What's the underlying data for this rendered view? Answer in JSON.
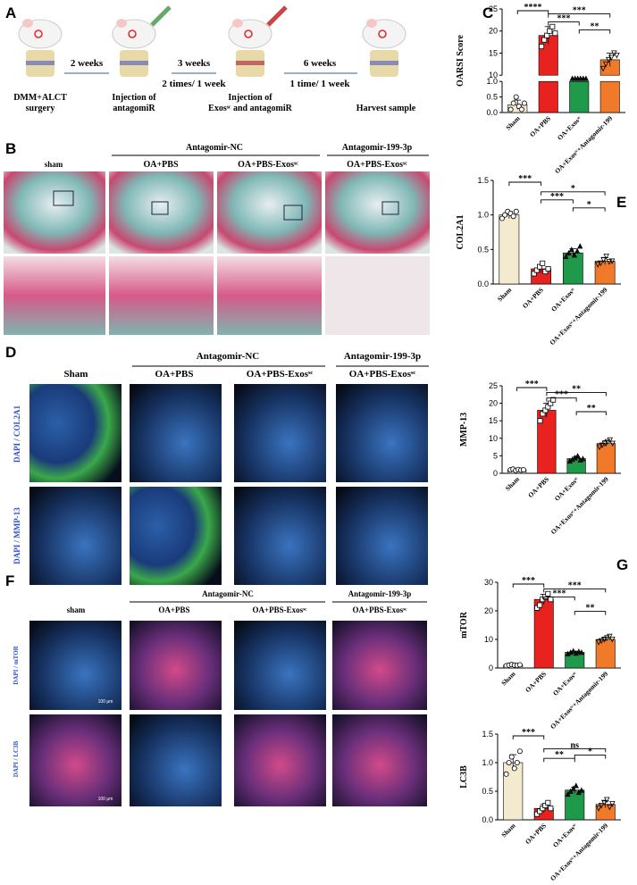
{
  "panel_labels": {
    "a": "A",
    "b": "B",
    "c": "C",
    "d": "D",
    "e": "E",
    "f": "F",
    "g": "G"
  },
  "scheme": {
    "steps": [
      [
        "DMM+ALCT",
        "surgery"
      ],
      [
        "Injection of",
        "antagomiR"
      ],
      [
        "Injection  of",
        "Exosˢᶜ and antagomiR"
      ],
      [
        "Harvest sample"
      ]
    ],
    "intervals": [
      {
        "duration": "2 weeks"
      },
      {
        "duration": "3 weeks",
        "frequency": "2 times/ 1 week"
      },
      {
        "duration": "6 weeks",
        "frequency": "1 time/ 1 week"
      }
    ]
  },
  "histology": {
    "group_headers": [
      "Antagomir-NC",
      "Antagomir-199-3p"
    ],
    "columns": [
      "sham",
      "OA+PBS",
      "OA+PBS-Exosˢᶜ",
      "OA+PBS-Exosˢᶜ"
    ]
  },
  "fluorescence_d": {
    "group_headers": [
      "Antagomir-NC",
      "Antagomir-199-3p"
    ],
    "columns": [
      "Sham",
      "OA+PBS",
      "OA+PBS-Exosˢᶜ",
      "OA+PBS-Exosˢᶜ"
    ],
    "rows": [
      "DAPI / COL2A1",
      "DAPI / MMP-13"
    ]
  },
  "fluorescence_f": {
    "group_headers": [
      "Antagomir-NC",
      "Antagomir-199-3p"
    ],
    "columns": [
      "sham",
      "OA+PBS",
      "OA+PBS-Exosˢᶜ",
      "OA+PBS-Exosˢᶜ"
    ],
    "rows": [
      "DAPI / mTOR",
      "DAPI / LC3B"
    ],
    "scale_bar": "100 μm"
  },
  "chart_data": [
    {
      "type": "bar",
      "ylabel": "OARSI Score",
      "categories": [
        "Sham",
        "OA+PBS",
        "OA+Exosˢᶜ",
        "OA+Exosˢᶜ+Antagomir-199"
      ],
      "colors": [
        "#f3ead0",
        "#e8231f",
        "#1e9a4a",
        "#f07a2a"
      ],
      "values": [
        0.25,
        19,
        8.8,
        13.5
      ],
      "errors": [
        0.15,
        2,
        0.8,
        1.5
      ],
      "points": [
        [
          0.1,
          0.3,
          0.5,
          0.2,
          0.1,
          0.3
        ],
        [
          16.5,
          18,
          19,
          20,
          21,
          19.5
        ],
        [
          8,
          8.5,
          9,
          9.5,
          8.5,
          9.5
        ],
        [
          11.5,
          12.5,
          13.5,
          14,
          15,
          14.5
        ]
      ],
      "ylim": [
        0,
        25
      ],
      "axis_break": [
        1,
        10
      ],
      "yticks": [
        {
          "value": 0,
          "label": "0.0"
        },
        0.5,
        {
          "value": 1,
          "label": "1.0"
        },
        10,
        15,
        20,
        25
      ],
      "significance": [
        "****",
        "***",
        "***",
        "**"
      ]
    },
    {
      "type": "bar",
      "ylabel": "COL2A1",
      "categories": [
        "Sham",
        "OA+PBS",
        "OA+Exosˢᶜ",
        "OA+Exosˢᶜ+Antagomir-199"
      ],
      "colors": [
        "#f3ead0",
        "#e8231f",
        "#1e9a4a",
        "#f07a2a"
      ],
      "values": [
        1.0,
        0.22,
        0.45,
        0.33
      ],
      "errors": [
        0.05,
        0.06,
        0.06,
        0.05
      ],
      "points": [
        [
          0.95,
          1.0,
          1.05,
          1.02,
          0.98,
          1.05
        ],
        [
          0.15,
          0.2,
          0.25,
          0.3,
          0.18,
          0.22
        ],
        [
          0.4,
          0.45,
          0.5,
          0.42,
          0.48,
          0.55
        ],
        [
          0.28,
          0.3,
          0.35,
          0.4,
          0.32,
          0.33
        ]
      ],
      "ylim": [
        0,
        1.5
      ],
      "yticks": [
        {
          "value": 0,
          "label": "0.0"
        },
        0.5,
        {
          "value": 1,
          "label": "1.0"
        },
        1.5
      ],
      "significance": [
        "***",
        "*",
        "***",
        "*"
      ]
    },
    {
      "type": "bar",
      "ylabel": "MMP-13",
      "categories": [
        "Sham",
        "OA+PBS",
        "OA+Exosˢᶜ",
        "OA+Exosˢᶜ+Antagomir-199"
      ],
      "colors": [
        "#f3ead0",
        "#e8231f",
        "#1e9a4a",
        "#f07a2a"
      ],
      "values": [
        1,
        18,
        4.2,
        8.5
      ],
      "errors": [
        0.2,
        2,
        0.6,
        0.8
      ],
      "points": [
        [
          1,
          1.2,
          0.8,
          1.1,
          0.9,
          1
        ],
        [
          15,
          17,
          18,
          19,
          20,
          21
        ],
        [
          3.5,
          4,
          4.5,
          5,
          3.8,
          4.2
        ],
        [
          7.5,
          8,
          8.5,
          9,
          9.5,
          8.5
        ]
      ],
      "ylim": [
        0,
        25
      ],
      "yticks": [
        0,
        5,
        10,
        15,
        20,
        25
      ],
      "significance": [
        "***",
        "**",
        "***",
        "**"
      ]
    },
    {
      "type": "bar",
      "ylabel": "mTOR",
      "categories": [
        "Sham",
        "OA+PBS",
        "OA+Exosˢᶜ",
        "OA+Exosˢᶜ+Antagomir-199"
      ],
      "colors": [
        "#f3ead0",
        "#e8231f",
        "#1e9a4a",
        "#f07a2a"
      ],
      "values": [
        1,
        24,
        5.5,
        10
      ],
      "errors": [
        0.2,
        1.8,
        0.4,
        0.7
      ],
      "points": [
        [
          0.8,
          1,
          1.2,
          1,
          0.9,
          1.1
        ],
        [
          21,
          22,
          24,
          25,
          26,
          24
        ],
        [
          5,
          5.5,
          6,
          5.2,
          5.8,
          5.5
        ],
        [
          9,
          9.5,
          10,
          10.5,
          11,
          10
        ]
      ],
      "ylim": [
        0,
        30
      ],
      "yticks": [
        0,
        10,
        20,
        30
      ],
      "significance": [
        "***",
        "***",
        "***",
        "**"
      ]
    },
    {
      "type": "bar",
      "ylabel": "LC3B",
      "categories": [
        "Sham",
        "OA+PBS",
        "OA+Exosˢᶜ",
        "OA+Exosˢᶜ+Antagomir-199"
      ],
      "colors": [
        "#f3ead0",
        "#e8231f",
        "#1e9a4a",
        "#f07a2a"
      ],
      "values": [
        1.0,
        0.2,
        0.52,
        0.27
      ],
      "errors": [
        0.14,
        0.07,
        0.05,
        0.06
      ],
      "points": [
        [
          0.8,
          1.0,
          1.1,
          0.9,
          1.0,
          1.2
        ],
        [
          0.1,
          0.15,
          0.2,
          0.25,
          0.3,
          0.2
        ],
        [
          0.45,
          0.5,
          0.55,
          0.6,
          0.48,
          0.52
        ],
        [
          0.2,
          0.25,
          0.3,
          0.35,
          0.22,
          0.28
        ]
      ],
      "ylim": [
        0,
        1.5
      ],
      "yticks": [
        {
          "value": 0,
          "label": "0.0"
        },
        0.5,
        {
          "value": 1,
          "label": "1.0"
        },
        1.5
      ],
      "significance": [
        "***",
        "ns",
        "**",
        "*"
      ]
    }
  ]
}
